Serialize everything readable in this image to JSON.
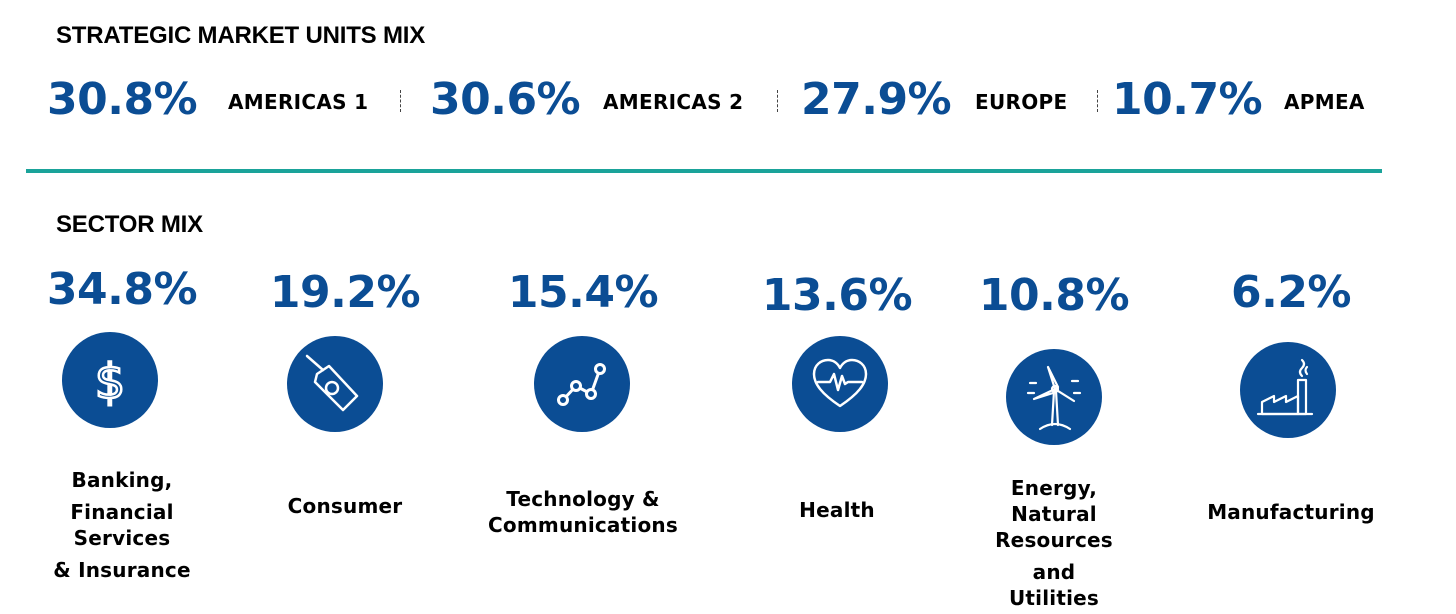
{
  "smu": {
    "title": "STRATEGIC MARKET UNITS MIX",
    "items": [
      {
        "pct": "30.8%",
        "label": "AMERICAS 1"
      },
      {
        "pct": "30.6%",
        "label": "AMERICAS 2"
      },
      {
        "pct": "27.9%",
        "label": "EUROPE"
      },
      {
        "pct": "10.7%",
        "label": "APMEA"
      }
    ]
  },
  "sector": {
    "title": "SECTOR MIX",
    "items": [
      {
        "pct": "34.8%",
        "lines": [
          "Banking,",
          "Financial",
          "Services",
          "& Insurance"
        ],
        "icon": "dollar-icon"
      },
      {
        "pct": "19.2%",
        "lines": [
          "Consumer"
        ],
        "icon": "price-tag-icon"
      },
      {
        "pct": "15.4%",
        "lines": [
          "Technology &",
          "Communications"
        ],
        "icon": "line-graph-icon"
      },
      {
        "pct": "13.6%",
        "lines": [
          "Health"
        ],
        "icon": "heartbeat-icon"
      },
      {
        "pct": "10.8%",
        "lines": [
          "Energy,",
          "Natural",
          "Resources",
          "and",
          "Utilities"
        ],
        "icon": "wind-turbine-icon"
      },
      {
        "pct": "6.2%",
        "lines": [
          "Manufacturing"
        ],
        "icon": "factory-icon"
      }
    ]
  },
  "colors": {
    "accent": "#0b4d94",
    "divider": "#1aa39a"
  },
  "chart_data": [
    {
      "type": "table",
      "title": "STRATEGIC MARKET UNITS MIX",
      "categories": [
        "AMERICAS 1",
        "AMERICAS 2",
        "EUROPE",
        "APMEA"
      ],
      "values": [
        30.8,
        30.6,
        27.9,
        10.7
      ],
      "unit": "%"
    },
    {
      "type": "table",
      "title": "SECTOR MIX",
      "categories": [
        "Banking, Financial Services & Insurance",
        "Consumer",
        "Technology & Communications",
        "Health",
        "Energy, Natural Resources and Utilities",
        "Manufacturing"
      ],
      "values": [
        34.8,
        19.2,
        15.4,
        13.6,
        10.8,
        6.2
      ],
      "unit": "%"
    }
  ]
}
